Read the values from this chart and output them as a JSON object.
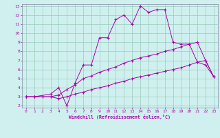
{
  "xlabel": "Windchill (Refroidissement éolien,°C)",
  "bg_color": "#cff0ee",
  "line_color": "#aa00aa",
  "grid_color": "#99ccbb",
  "spine_color": "#8888aa",
  "xlim": [
    -0.5,
    23.5
  ],
  "ylim": [
    1.8,
    13.2
  ],
  "xticks": [
    0,
    1,
    2,
    3,
    4,
    5,
    6,
    7,
    8,
    9,
    10,
    11,
    12,
    13,
    14,
    15,
    16,
    17,
    18,
    19,
    20,
    21,
    22,
    23
  ],
  "yticks": [
    2,
    3,
    4,
    5,
    6,
    7,
    8,
    9,
    10,
    11,
    12,
    13
  ],
  "line1_x": [
    0,
    1,
    3,
    4,
    5,
    6,
    7,
    8,
    9,
    10,
    11,
    12,
    13,
    14,
    15,
    16,
    17,
    18,
    19,
    20,
    21,
    22,
    23
  ],
  "line1_y": [
    3,
    3,
    3.3,
    4.0,
    2.0,
    4.5,
    6.5,
    6.5,
    9.5,
    9.5,
    11.5,
    12.0,
    11.0,
    13.0,
    12.3,
    12.6,
    12.6,
    9.0,
    8.8,
    8.8,
    6.8,
    7.0,
    5.2
  ],
  "line2_x": [
    0,
    1,
    2,
    3,
    4,
    5,
    6,
    7,
    8,
    9,
    10,
    11,
    12,
    13,
    14,
    15,
    16,
    17,
    18,
    19,
    20,
    21,
    22,
    23
  ],
  "line2_y": [
    3,
    3,
    3,
    3,
    3.2,
    3.8,
    4.3,
    5.0,
    5.3,
    5.7,
    6.0,
    6.3,
    6.7,
    7.0,
    7.3,
    7.5,
    7.7,
    8.0,
    8.2,
    8.5,
    8.8,
    9.0,
    7.0,
    5.2
  ],
  "line3_x": [
    0,
    1,
    2,
    3,
    4,
    5,
    6,
    7,
    8,
    9,
    10,
    11,
    12,
    13,
    14,
    15,
    16,
    17,
    18,
    19,
    20,
    21,
    22,
    23
  ],
  "line3_y": [
    3,
    3,
    3,
    3,
    2.8,
    3.0,
    3.3,
    3.5,
    3.8,
    4.0,
    4.2,
    4.5,
    4.7,
    5.0,
    5.2,
    5.4,
    5.6,
    5.8,
    6.0,
    6.2,
    6.5,
    6.8,
    6.5,
    5.2
  ]
}
